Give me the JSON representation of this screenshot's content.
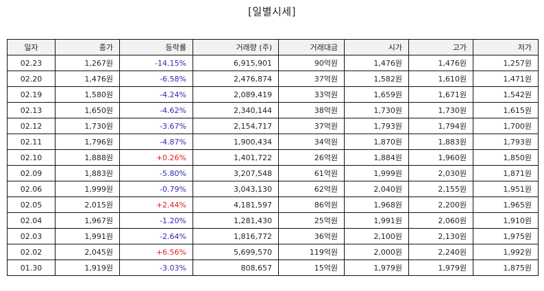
{
  "title": "[일별시세]",
  "colors": {
    "down": "#2b2bb5",
    "up": "#e02020",
    "header_bg": "#f2f2f2",
    "border": "#111111"
  },
  "table": {
    "headers": [
      "일자",
      "종가",
      "등락률",
      "거래량 (주)",
      "거래대금",
      "시가",
      "고가",
      "저가"
    ],
    "rows": [
      {
        "date": "02.23",
        "close": "1,267원",
        "change": "-14.15%",
        "direction": "down",
        "volume": "6,915,901",
        "amount": "90억원",
        "open": "1,476원",
        "high": "1,476원",
        "low": "1,257원"
      },
      {
        "date": "02.20",
        "close": "1,476원",
        "change": "-6.58%",
        "direction": "down",
        "volume": "2,476,874",
        "amount": "37억원",
        "open": "1,582원",
        "high": "1,610원",
        "low": "1,471원"
      },
      {
        "date": "02.19",
        "close": "1,580원",
        "change": "-4.24%",
        "direction": "down",
        "volume": "2,089,419",
        "amount": "33억원",
        "open": "1,659원",
        "high": "1,671원",
        "low": "1,542원"
      },
      {
        "date": "02.13",
        "close": "1,650원",
        "change": "-4.62%",
        "direction": "down",
        "volume": "2,340,144",
        "amount": "38억원",
        "open": "1,730원",
        "high": "1,730원",
        "low": "1,615원"
      },
      {
        "date": "02.12",
        "close": "1,730원",
        "change": "-3.67%",
        "direction": "down",
        "volume": "2,154,717",
        "amount": "37억원",
        "open": "1,793원",
        "high": "1,794원",
        "low": "1,700원"
      },
      {
        "date": "02.11",
        "close": "1,796원",
        "change": "-4.87%",
        "direction": "down",
        "volume": "1,900,434",
        "amount": "34억원",
        "open": "1,870원",
        "high": "1,883원",
        "low": "1,793원"
      },
      {
        "date": "02.10",
        "close": "1,888원",
        "change": "+0.26%",
        "direction": "up",
        "volume": "1,401,722",
        "amount": "26억원",
        "open": "1,884원",
        "high": "1,960원",
        "low": "1,850원"
      },
      {
        "date": "02.09",
        "close": "1,883원",
        "change": "-5.80%",
        "direction": "down",
        "volume": "3,207,548",
        "amount": "61억원",
        "open": "1,999원",
        "high": "2,030원",
        "low": "1,871원"
      },
      {
        "date": "02.06",
        "close": "1,999원",
        "change": "-0.79%",
        "direction": "down",
        "volume": "3,043,130",
        "amount": "62억원",
        "open": "2,040원",
        "high": "2,155원",
        "low": "1,951원"
      },
      {
        "date": "02.05",
        "close": "2,015원",
        "change": "+2.44%",
        "direction": "up",
        "volume": "4,181,597",
        "amount": "86억원",
        "open": "1,968원",
        "high": "2,200원",
        "low": "1,965원"
      },
      {
        "date": "02.04",
        "close": "1,967원",
        "change": "-1.20%",
        "direction": "down",
        "volume": "1,281,430",
        "amount": "25억원",
        "open": "1,991원",
        "high": "2,060원",
        "low": "1,910원"
      },
      {
        "date": "02.03",
        "close": "1,991원",
        "change": "-2.64%",
        "direction": "down",
        "volume": "1,816,772",
        "amount": "36억원",
        "open": "2,100원",
        "high": "2,130원",
        "low": "1,975원"
      },
      {
        "date": "02.02",
        "close": "2,045원",
        "change": "+6.56%",
        "direction": "up",
        "volume": "5,699,570",
        "amount": "119억원",
        "open": "2,000원",
        "high": "2,240원",
        "low": "1,992원"
      },
      {
        "date": "01.30",
        "close": "1,919원",
        "change": "-3.03%",
        "direction": "down",
        "volume": "808,657",
        "amount": "15억원",
        "open": "1,979원",
        "high": "1,979원",
        "low": "1,875원"
      }
    ]
  }
}
